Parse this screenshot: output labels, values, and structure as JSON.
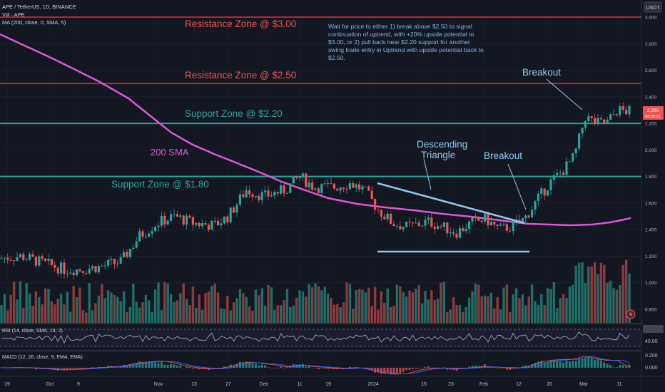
{
  "chart_data": {
    "type": "candlestick",
    "header": {
      "symbol": "APE / TetherUS, 1D, BINANCE",
      "volume_label": "Vol · APE",
      "ma_label": "MA (200, close, 0, SMA, 5)",
      "currency": "USDT"
    },
    "price_axis": {
      "ticks": [
        "3.000",
        "2.800",
        "2.600",
        "2.400",
        "2.200",
        "2.000",
        "1.800",
        "1.600",
        "1.400",
        "1.200",
        "1.000",
        "0.800"
      ],
      "ylim": [
        0.7,
        3.05
      ],
      "last_price": "2.290",
      "last_price_sub": "08:35:53"
    },
    "time_axis": {
      "ticks": [
        "19",
        "Oct",
        "9",
        "Nov",
        "13",
        "27",
        "Dec",
        "11",
        "19",
        "2024",
        "15",
        "23",
        "Feb",
        "12",
        "20",
        "Mar",
        "11"
      ]
    },
    "levels": [
      {
        "label": "Resistance Zone @ $3.00",
        "value": 3.0,
        "color": "#b2282e",
        "label_color": "#ef5350"
      },
      {
        "label": "Resistance Zone @ $2.50",
        "value": 2.5,
        "color": "#b2282e",
        "label_color": "#ef5350"
      },
      {
        "label": "Support Zone @ $2.20",
        "value": 2.2,
        "color": "#26a69a",
        "label_color": "#26a69a"
      },
      {
        "label": "Support Zone @ $1.80",
        "value": 1.8,
        "color": "#26a69a",
        "label_color": "#26a69a"
      }
    ],
    "annotations": {
      "sma_label": "200 SMA",
      "pattern_label_line1": "Descending",
      "pattern_label_line2": "Triangle",
      "breakout_1": "Breakout",
      "breakout_2": "Breakout",
      "note": "Wait for price to either 1) break above $2.50 to signal continuation of uptrend, with +20% upside potential to $3.00, or 2) pull back near $2.20 support for another swing trade entry in Uptrend with upside potential back to $2.50."
    },
    "sma200": {
      "name": "200 SMA",
      "color": "#e056d6",
      "points": [
        [
          0,
          2.87
        ],
        [
          20,
          2.76
        ],
        [
          40,
          2.63
        ],
        [
          60,
          2.5
        ],
        [
          80,
          2.37
        ],
        [
          100,
          2.25
        ],
        [
          120,
          2.14
        ],
        [
          140,
          2.05
        ],
        [
          160,
          1.98
        ],
        [
          180,
          1.92
        ],
        [
          200,
          1.86
        ],
        [
          220,
          1.8
        ],
        [
          240,
          1.75
        ],
        [
          260,
          1.71
        ],
        [
          280,
          1.68
        ],
        [
          300,
          1.65
        ],
        [
          320,
          1.62
        ],
        [
          340,
          1.59
        ],
        [
          360,
          1.57
        ],
        [
          380,
          1.54
        ],
        [
          400,
          1.52
        ],
        [
          420,
          1.5
        ],
        [
          440,
          1.48
        ],
        [
          460,
          1.47
        ],
        [
          480,
          1.46
        ],
        [
          500,
          1.455
        ],
        [
          520,
          1.45
        ],
        [
          540,
          1.445
        ]
      ]
    },
    "rsi": {
      "label": "RSI (14, close, SMA, 14, 2)",
      "tick": "40.00",
      "value": 55
    },
    "macd": {
      "label": "MACD (12, 26, close, 9, EMA, EMA)",
      "ticks": [
        "0.200",
        "0.000"
      ]
    }
  },
  "ui": {
    "currency_badge": "USDT",
    "flash_icon": "lightning-icon",
    "colors": {
      "background": "#131722",
      "bull": "#26a69a",
      "bear": "#ef5350",
      "triangle": "#8ec9ee",
      "note": "#7fb7ec"
    }
  }
}
